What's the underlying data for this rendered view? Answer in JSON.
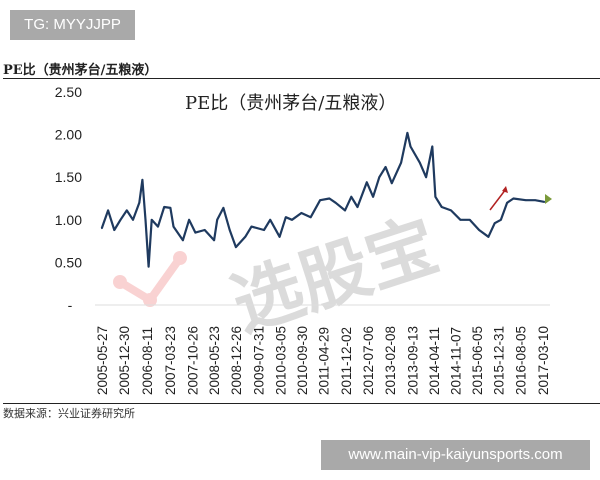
{
  "overlay_tag": "TG: MYYJJPP",
  "figure_header": "PE比（贵州茅台/五粮液）",
  "source_note": "数据来源：兴业证券研究所",
  "watermark_url": "www.main-vip-kaiyunsports.com",
  "chart_data": {
    "type": "line",
    "title": "PE比（贵州茅台/五粮液）",
    "xlabel": "",
    "ylabel": "",
    "ylim": [
      0,
      2.5
    ],
    "y_ticks": [
      "-",
      "0.50",
      "1.00",
      "1.50",
      "2.00",
      "2.50"
    ],
    "x_ticks": [
      "2005-05-27",
      "2005-12-30",
      "2006-08-11",
      "2007-03-23",
      "2007-10-26",
      "2008-05-23",
      "2008-12-26",
      "2009-07-31",
      "2010-03-05",
      "2010-09-30",
      "2011-04-29",
      "2011-12-02",
      "2012-07-06",
      "2013-02-08",
      "2013-09-13",
      "2014-04-11",
      "2014-11-07",
      "2015-06-05",
      "2015-12-31",
      "2016-08-05",
      "2017-03-10"
    ],
    "grid": false,
    "line_color": "#1f3a5f",
    "series": [
      {
        "x": [
          "2005-05",
          "2005-07",
          "2005-09",
          "2005-11",
          "2006-01",
          "2006-03",
          "2006-05",
          "2006-06",
          "2006-07",
          "2006-08",
          "2006-09",
          "2006-11",
          "2007-01",
          "2007-03",
          "2007-04",
          "2007-07",
          "2007-09",
          "2007-11",
          "2008-02",
          "2008-05",
          "2008-06",
          "2008-08",
          "2008-10",
          "2008-12",
          "2009-03",
          "2009-05",
          "2009-09",
          "2009-11",
          "2010-02",
          "2010-04",
          "2010-06",
          "2010-09",
          "2010-12",
          "2011-03",
          "2011-06",
          "2011-08",
          "2011-11",
          "2012-01",
          "2012-03",
          "2012-06",
          "2012-08",
          "2012-10",
          "2012-12",
          "2013-02",
          "2013-05",
          "2013-07",
          "2013-08",
          "2013-11",
          "2014-01",
          "2014-03",
          "2014-04",
          "2014-06",
          "2014-09",
          "2014-12",
          "2015-03",
          "2015-06",
          "2015-09",
          "2015-11",
          "2016-01",
          "2016-03",
          "2016-05",
          "2016-09",
          "2016-12",
          "2017-03"
        ],
        "values": [
          0.9,
          1.11,
          0.88,
          1.0,
          1.11,
          1.0,
          1.2,
          1.47,
          1.0,
          0.45,
          1.0,
          0.92,
          1.15,
          1.14,
          0.92,
          0.76,
          1.0,
          0.85,
          0.88,
          0.76,
          1.0,
          1.14,
          0.88,
          0.68,
          0.8,
          0.92,
          0.88,
          1.0,
          0.8,
          1.03,
          1.0,
          1.08,
          1.03,
          1.23,
          1.25,
          1.2,
          1.11,
          1.27,
          1.15,
          1.44,
          1.27,
          1.5,
          1.62,
          1.43,
          1.67,
          2.02,
          1.86,
          1.67,
          1.5,
          1.86,
          1.27,
          1.15,
          1.11,
          1.0,
          1.0,
          0.88,
          0.8,
          0.96,
          1.0,
          1.2,
          1.25,
          1.23,
          1.23,
          1.21
        ]
      }
    ]
  }
}
